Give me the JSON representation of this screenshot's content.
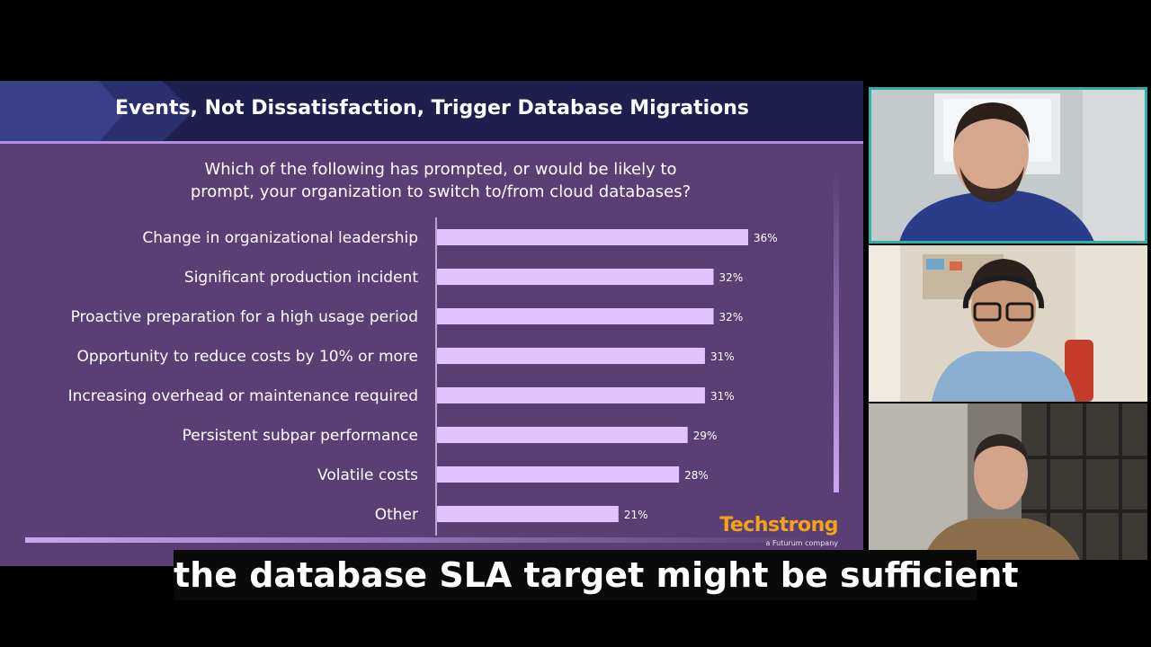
{
  "slide": {
    "title": "Events, Not Dissatisfaction, Trigger Database Migrations",
    "question_line1": "Which of the following has prompted, or would be likely to",
    "question_line2": "prompt, your organization to switch to/from cloud databases?"
  },
  "chart_data": {
    "type": "bar",
    "orientation": "horizontal",
    "categories": [
      "Change in organizational leadership",
      "Significant production incident",
      "Proactive preparation for a high usage period",
      "Opportunity to reduce costs by 10% or more",
      "Increasing overhead or maintenance required",
      "Persistent subpar performance",
      "Volatile costs",
      "Other"
    ],
    "values": [
      36,
      32,
      32,
      31,
      31,
      29,
      28,
      21
    ],
    "value_labels": [
      "36%",
      "32%",
      "32%",
      "31%",
      "31%",
      "29%",
      "28%",
      "21%"
    ],
    "unit": "%",
    "xlim": [
      0,
      40
    ],
    "grid": false,
    "bar_color": "#e2c2ff"
  },
  "logo": {
    "brand": "Techstrong",
    "tagline": "a Futurum company",
    "color": "#f5a21b"
  },
  "participants": [
    {
      "tile": "participant-1",
      "border_color": "#2bb3a6",
      "active": true
    },
    {
      "tile": "participant-2",
      "active": false
    },
    {
      "tile": "participant-3",
      "active": false
    }
  ],
  "caption": {
    "text": "the database SLA target might be sufficient"
  }
}
